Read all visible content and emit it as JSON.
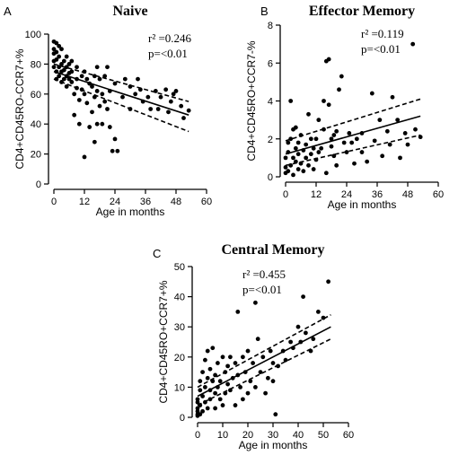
{
  "chart_data": [
    {
      "type": "scatter",
      "panel_label": "A",
      "title": "Naive",
      "xlabel": "Age in months",
      "ylabel": "CD4+CD45RO-CCR7+%",
      "xlim": [
        0,
        60
      ],
      "ylim": [
        0,
        100
      ],
      "xticks": [
        0,
        12,
        24,
        36,
        48,
        60
      ],
      "yticks": [
        0,
        20,
        40,
        60,
        80,
        100
      ],
      "annotations": [
        "r² =0.246",
        "p=<0.01"
      ],
      "fit": {
        "x": [
          0,
          53
        ],
        "y": [
          75,
          46
        ],
        "ci_lower": [
          70,
          35
        ],
        "ci_upper": [
          80,
          55
        ]
      },
      "points": [
        [
          0,
          95
        ],
        [
          0,
          90
        ],
        [
          0,
          87
        ],
        [
          0,
          82
        ],
        [
          0,
          78
        ],
        [
          1,
          94
        ],
        [
          1,
          88
        ],
        [
          1,
          83
        ],
        [
          1,
          75
        ],
        [
          1,
          70
        ],
        [
          2,
          92
        ],
        [
          2,
          85
        ],
        [
          2,
          78
        ],
        [
          2,
          72
        ],
        [
          3,
          90
        ],
        [
          3,
          80
        ],
        [
          3,
          75
        ],
        [
          3,
          68
        ],
        [
          4,
          82
        ],
        [
          4,
          76
        ],
        [
          4,
          70
        ],
        [
          5,
          85
        ],
        [
          5,
          78
        ],
        [
          5,
          72
        ],
        [
          5,
          65
        ],
        [
          6,
          80
        ],
        [
          6,
          74
        ],
        [
          6,
          70
        ],
        [
          7,
          82
        ],
        [
          7,
          75
        ],
        [
          7,
          68
        ],
        [
          8,
          60
        ],
        [
          8,
          46
        ],
        [
          9,
          78
        ],
        [
          9,
          70
        ],
        [
          9,
          64
        ],
        [
          10,
          56
        ],
        [
          10,
          40
        ],
        [
          11,
          72
        ],
        [
          11,
          63
        ],
        [
          12,
          75
        ],
        [
          12,
          60
        ],
        [
          12,
          18
        ],
        [
          13,
          70
        ],
        [
          13,
          54
        ],
        [
          14,
          67
        ],
        [
          14,
          38
        ],
        [
          15,
          65
        ],
        [
          15,
          48
        ],
        [
          16,
          72
        ],
        [
          16,
          58
        ],
        [
          16,
          28
        ],
        [
          17,
          78
        ],
        [
          17,
          62
        ],
        [
          17,
          40
        ],
        [
          18,
          70
        ],
        [
          18,
          52
        ],
        [
          19,
          60
        ],
        [
          19,
          40
        ],
        [
          20,
          72
        ],
        [
          20,
          55
        ],
        [
          21,
          78
        ],
        [
          21,
          50
        ],
        [
          22,
          62
        ],
        [
          22,
          38
        ],
        [
          23,
          22
        ],
        [
          24,
          67
        ],
        [
          24,
          30
        ],
        [
          25,
          22
        ],
        [
          27,
          58
        ],
        [
          28,
          70
        ],
        [
          30,
          65
        ],
        [
          30,
          50
        ],
        [
          32,
          60
        ],
        [
          33,
          70
        ],
        [
          34,
          63
        ],
        [
          35,
          55
        ],
        [
          37,
          58
        ],
        [
          38,
          50
        ],
        [
          40,
          62
        ],
        [
          41,
          50
        ],
        [
          42,
          58
        ],
        [
          44,
          63
        ],
        [
          45,
          48
        ],
        [
          46,
          55
        ],
        [
          47,
          60
        ],
        [
          48,
          62
        ],
        [
          50,
          52
        ],
        [
          51,
          44
        ],
        [
          53,
          49
        ]
      ]
    },
    {
      "type": "scatter",
      "panel_label": "B",
      "title": "Effector Memory",
      "xlabel": "Age in months",
      "ylabel": "CD4+CD45RO+CCR7-%",
      "xlim": [
        0,
        60
      ],
      "ylim": [
        0,
        8
      ],
      "xticks": [
        0,
        12,
        24,
        36,
        48,
        60
      ],
      "yticks": [
        0,
        2,
        4,
        6,
        8
      ],
      "annotations": [
        "r² =0.119",
        "p=<0.01"
      ],
      "fit": {
        "x": [
          0,
          53
        ],
        "y": [
          1.2,
          3.2
        ],
        "ci_lower": [
          0.6,
          2.2
        ],
        "ci_upper": [
          1.9,
          4.1
        ]
      },
      "points": [
        [
          0,
          0.2
        ],
        [
          0,
          0.5
        ],
        [
          0,
          1.0
        ],
        [
          1,
          0.3
        ],
        [
          1,
          1.3
        ],
        [
          1,
          1.8
        ],
        [
          2,
          0.6
        ],
        [
          2,
          2.0
        ],
        [
          2,
          4.0
        ],
        [
          3,
          0.1
        ],
        [
          3,
          1.0
        ],
        [
          3,
          2.5
        ],
        [
          4,
          0.8
        ],
        [
          4,
          1.5
        ],
        [
          4,
          2.6
        ],
        [
          5,
          0.4
        ],
        [
          5,
          1.2
        ],
        [
          5,
          1.8
        ],
        [
          6,
          0.7
        ],
        [
          6,
          2.2
        ],
        [
          7,
          1.4
        ],
        [
          7,
          0.3
        ],
        [
          8,
          1.0
        ],
        [
          8,
          1.7
        ],
        [
          9,
          3.3
        ],
        [
          9,
          0.6
        ],
        [
          10,
          1.2
        ],
        [
          10,
          2.0
        ],
        [
          11,
          0.4
        ],
        [
          11,
          1.5
        ],
        [
          12,
          2.0
        ],
        [
          12,
          0.9
        ],
        [
          13,
          3.0
        ],
        [
          13,
          1.3
        ],
        [
          14,
          1.5
        ],
        [
          15,
          4.0
        ],
        [
          15,
          2.5
        ],
        [
          16,
          6.1
        ],
        [
          16,
          0.2
        ],
        [
          17,
          6.2
        ],
        [
          17,
          3.8
        ],
        [
          18,
          2.0
        ],
        [
          18,
          1.6
        ],
        [
          19,
          1.1
        ],
        [
          19,
          2.2
        ],
        [
          20,
          2.4
        ],
        [
          20,
          0.6
        ],
        [
          21,
          4.6
        ],
        [
          22,
          5.3
        ],
        [
          23,
          1.8
        ],
        [
          24,
          1.3
        ],
        [
          25,
          2.3
        ],
        [
          26,
          1.8
        ],
        [
          27,
          0.7
        ],
        [
          28,
          2.0
        ],
        [
          30,
          1.3
        ],
        [
          30,
          2.3
        ],
        [
          32,
          0.8
        ],
        [
          34,
          4.4
        ],
        [
          35,
          1.9
        ],
        [
          37,
          3.0
        ],
        [
          38,
          1.1
        ],
        [
          40,
          2.4
        ],
        [
          41,
          1.7
        ],
        [
          42,
          4.2
        ],
        [
          44,
          3.0
        ],
        [
          45,
          1.0
        ],
        [
          47,
          2.3
        ],
        [
          48,
          1.7
        ],
        [
          50,
          7.0
        ],
        [
          51,
          2.5
        ],
        [
          53,
          2.1
        ]
      ]
    },
    {
      "type": "scatter",
      "panel_label": "C",
      "title": "Central Memory",
      "xlabel": "Age in months",
      "ylabel": "CD4+CD45RO+CCR7+%",
      "xlim": [
        0,
        60
      ],
      "ylim": [
        0,
        50
      ],
      "xticks": [
        0,
        10,
        20,
        30,
        40,
        50,
        60
      ],
      "yticks": [
        0,
        10,
        20,
        30,
        40,
        50
      ],
      "annotations": [
        "r² =0.455",
        "p=<0.01"
      ],
      "fit": {
        "x": [
          0,
          53
        ],
        "y": [
          7,
          30
        ],
        "ci_lower": [
          4,
          26
        ],
        "ci_upper": [
          10,
          34
        ]
      },
      "points": [
        [
          0,
          0.5
        ],
        [
          0,
          1
        ],
        [
          0,
          2
        ],
        [
          0,
          3
        ],
        [
          0,
          5
        ],
        [
          0,
          6
        ],
        [
          1,
          1
        ],
        [
          1,
          4
        ],
        [
          1,
          9
        ],
        [
          1,
          12
        ],
        [
          2,
          2
        ],
        [
          2,
          7
        ],
        [
          2,
          15
        ],
        [
          3,
          5
        ],
        [
          3,
          10
        ],
        [
          3,
          19
        ],
        [
          4,
          3
        ],
        [
          4,
          13
        ],
        [
          4,
          22
        ],
        [
          5,
          6
        ],
        [
          5,
          9
        ],
        [
          5,
          16
        ],
        [
          6,
          23
        ],
        [
          6,
          12
        ],
        [
          7,
          3
        ],
        [
          7,
          8
        ],
        [
          7,
          14
        ],
        [
          8,
          10
        ],
        [
          8,
          18
        ],
        [
          9,
          6
        ],
        [
          9,
          12
        ],
        [
          10,
          20
        ],
        [
          10,
          4
        ],
        [
          11,
          15
        ],
        [
          11,
          8
        ],
        [
          12,
          17
        ],
        [
          12,
          11
        ],
        [
          13,
          20
        ],
        [
          13,
          9
        ],
        [
          14,
          13
        ],
        [
          15,
          4
        ],
        [
          15,
          18
        ],
        [
          16,
          35
        ],
        [
          16,
          14
        ],
        [
          17,
          10
        ],
        [
          18,
          20
        ],
        [
          18,
          6
        ],
        [
          19,
          15
        ],
        [
          20,
          22
        ],
        [
          20,
          8
        ],
        [
          21,
          12
        ],
        [
          22,
          18
        ],
        [
          23,
          38
        ],
        [
          23,
          10
        ],
        [
          24,
          26
        ],
        [
          25,
          15
        ],
        [
          26,
          20
        ],
        [
          27,
          8
        ],
        [
          28,
          13
        ],
        [
          29,
          22
        ],
        [
          30,
          18
        ],
        [
          30,
          12
        ],
        [
          31,
          1
        ],
        [
          32,
          17
        ],
        [
          34,
          22
        ],
        [
          35,
          19
        ],
        [
          37,
          25
        ],
        [
          38,
          23
        ],
        [
          40,
          30
        ],
        [
          41,
          25
        ],
        [
          42,
          40
        ],
        [
          43,
          28
        ],
        [
          45,
          22
        ],
        [
          46,
          26
        ],
        [
          48,
          35
        ],
        [
          50,
          33
        ],
        [
          52,
          45
        ]
      ]
    }
  ]
}
